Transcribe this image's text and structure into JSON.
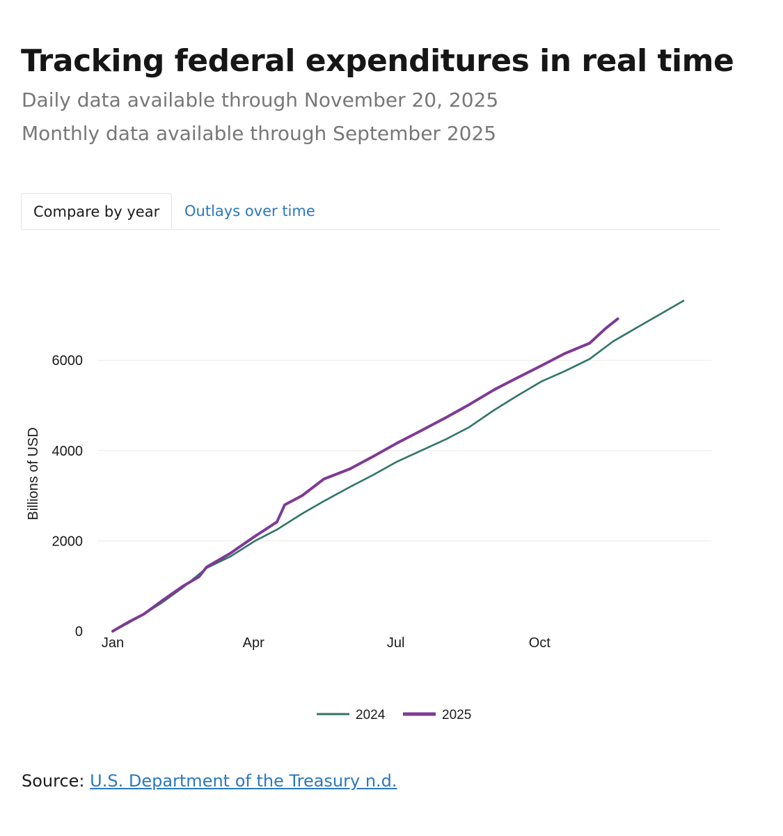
{
  "header": {
    "title": "Tracking federal expenditures in real time",
    "subtitle_daily": "Daily data available through November 20, 2025",
    "subtitle_monthly": "Monthly data available through September 2025"
  },
  "tabs": [
    {
      "label": "Compare by year",
      "active": true
    },
    {
      "label": "Outlays over time",
      "active": false
    }
  ],
  "colors": {
    "series_2024": "#2e7566",
    "series_2025": "#7e3a95",
    "link": "#2a78c0"
  },
  "chart_data": {
    "type": "line",
    "title": "",
    "xlabel": "",
    "ylabel": "Billions of USD",
    "xlim": [
      0,
      365
    ],
    "ylim": [
      0,
      7500
    ],
    "x_unit": "day of year",
    "x_ticks": [
      {
        "label": "Jan",
        "day": 0
      },
      {
        "label": "Apr",
        "day": 90
      },
      {
        "label": "Jul",
        "day": 181
      },
      {
        "label": "Oct",
        "day": 273
      }
    ],
    "y_ticks": [
      0,
      2000,
      4000,
      6000
    ],
    "grid": "horizontal",
    "legend_position": "bottom-center",
    "series": [
      {
        "name": "2024",
        "color": "#2e7566",
        "x": [
          0,
          10,
          20,
          31,
          45,
          60,
          75,
          91,
          105,
          121,
          135,
          152,
          166,
          182,
          196,
          213,
          228,
          244,
          258,
          274,
          289,
          305,
          320,
          335,
          350,
          365
        ],
        "y": [
          0,
          180,
          380,
          620,
          970,
          1400,
          1650,
          2000,
          2250,
          2600,
          2880,
          3200,
          3450,
          3760,
          3980,
          4250,
          4520,
          4900,
          5200,
          5530,
          5760,
          6030,
          6420,
          6720,
          7020,
          7320
        ]
      },
      {
        "name": "2025",
        "color": "#7e3a95",
        "x": [
          0,
          10,
          20,
          31,
          45,
          55,
          60,
          75,
          90,
          105,
          110,
          121,
          135,
          152,
          166,
          182,
          196,
          213,
          228,
          244,
          258,
          274,
          289,
          305,
          315,
          323
        ],
        "y": [
          0,
          200,
          380,
          660,
          1000,
          1200,
          1420,
          1720,
          2080,
          2420,
          2800,
          3000,
          3370,
          3600,
          3860,
          4170,
          4420,
          4730,
          5020,
          5350,
          5600,
          5880,
          6150,
          6380,
          6700,
          6920
        ]
      }
    ]
  },
  "source": {
    "label": "Source: ",
    "link_text": "U.S. Department of the Treasury n.d."
  }
}
